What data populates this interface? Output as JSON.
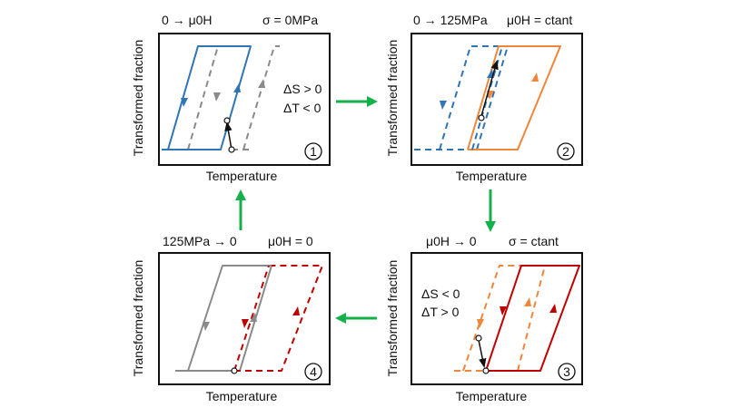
{
  "colors": {
    "blue": "#2f74b5",
    "orange": "#f0863a",
    "red": "#c00000",
    "gray": "#8a8a8a",
    "green": "#14b14a",
    "frame": "#111111"
  },
  "panels": [
    {
      "id": "1",
      "title_left": "0 → μ0H",
      "title_right": "σ = 0MPa",
      "ylabel": "Transformed fraction",
      "xlabel": "Temperature",
      "annotations": [
        "ΔS > 0",
        "ΔT < 0"
      ],
      "number": "1"
    },
    {
      "id": "2",
      "title_left": "0 → 125MPa",
      "title_right": "μ0H = ctant",
      "ylabel": "Transformed fraction",
      "xlabel": "Temperature",
      "annotations": [],
      "number": "2"
    },
    {
      "id": "3",
      "title_left": "μ0H → 0",
      "title_right": "σ = ctant",
      "ylabel": "Transformed fraction",
      "xlabel": "Temperature",
      "annotations": [
        "ΔS < 0",
        "ΔT > 0"
      ],
      "number": "3"
    },
    {
      "id": "4",
      "title_left": "125MPa → 0",
      "title_right": "μ0H = 0",
      "ylabel": "Transformed fraction",
      "xlabel": "Temperature",
      "annotations": [],
      "number": "4"
    }
  ],
  "icons": {
    "flow_arrows": "green-arrow-icon",
    "state_point": "open-circle-icon",
    "step_number": "circled-number-icon"
  }
}
